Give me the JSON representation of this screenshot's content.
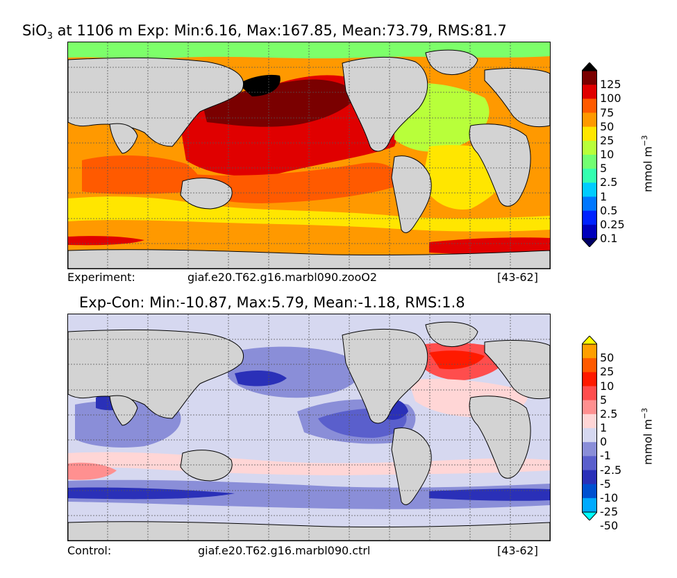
{
  "panel_top": {
    "title": "SiO3 at 1106 m Exp: Min:6.16, Max:167.85, Mean:73.79, RMS:81.7",
    "title_parts": {
      "pre": "SiO",
      "sub": "3",
      "post": " at 1106 m Exp: Min:6.16, Max:167.85, Mean:73.79, RMS:81.7"
    },
    "caption_left": "Experiment:",
    "caption_mid": "giaf.e20.T62.g16.marbl090.zooO2",
    "caption_right": "[43-62]",
    "colorbar": {
      "labels": [
        "125",
        "100",
        "75",
        "50",
        "25",
        "10",
        "5",
        "2.5",
        "1",
        "0.5",
        "0.25",
        "0.1"
      ],
      "colors": [
        "#000000",
        "#7a0000",
        "#e00000",
        "#ff5a00",
        "#ff9900",
        "#ffe600",
        "#b8ff3a",
        "#72ff72",
        "#33ffb0",
        "#00ccff",
        "#0077ff",
        "#0022ff",
        "#0000bb",
        "#000066"
      ],
      "unit": "mmol m",
      "unit_exp": "−3"
    }
  },
  "panel_bottom": {
    "title": "Exp-Con: Min:-10.87, Max:5.79, Mean:-1.18, RMS:1.8",
    "caption_left": "Control:",
    "caption_mid": "giaf.e20.T62.g16.marbl090.ctrl",
    "caption_right": "[43-62]",
    "colorbar": {
      "labels": [
        "50",
        "25",
        "10",
        "5",
        "2.5",
        "1",
        "0",
        "-1",
        "-2.5",
        "-5",
        "-10",
        "-25",
        "-50"
      ],
      "colors": [
        "#ffff00",
        "#ff9f00",
        "#ff5a00",
        "#ff1a00",
        "#ff4d4d",
        "#ff9090",
        "#ffd6d6",
        "#d6d8f0",
        "#8a8ed8",
        "#5a5fcc",
        "#2a30b8",
        "#0050d0",
        "#00aaff",
        "#00ffff"
      ],
      "unit": "mmol m",
      "unit_exp": "−3"
    }
  }
}
